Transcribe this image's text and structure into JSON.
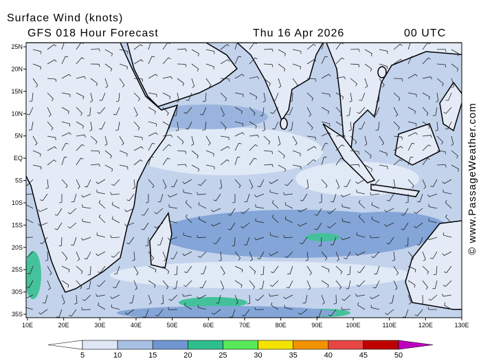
{
  "header": {
    "title": "Surface Wind (knots)",
    "model": "GFS 018 Hour Forecast",
    "date": "Thu 16 Apr 2026",
    "time": "00 UTC"
  },
  "map": {
    "lat_labels": [
      "25N",
      "20N",
      "15N",
      "10N",
      "5N",
      "EQ",
      "5S",
      "10S",
      "15S",
      "20S",
      "25S",
      "30S",
      "35S"
    ],
    "lon_labels": [
      "10E",
      "20E",
      "30E",
      "40E",
      "50E",
      "60E",
      "70E",
      "80E",
      "90E",
      "100E",
      "110E",
      "120E",
      "130E"
    ]
  },
  "colorbar": {
    "ticks": [
      5,
      10,
      15,
      20,
      25,
      30,
      35,
      40,
      45,
      50
    ],
    "colors": [
      "#dfe7f5",
      "#a7bfe2",
      "#7096d1",
      "#2fbe8e",
      "#58e85a",
      "#f4e300",
      "#f29200",
      "#e84545",
      "#bf0000",
      "#c000c0"
    ]
  },
  "watermark": "© www.PassageWeather.com"
}
